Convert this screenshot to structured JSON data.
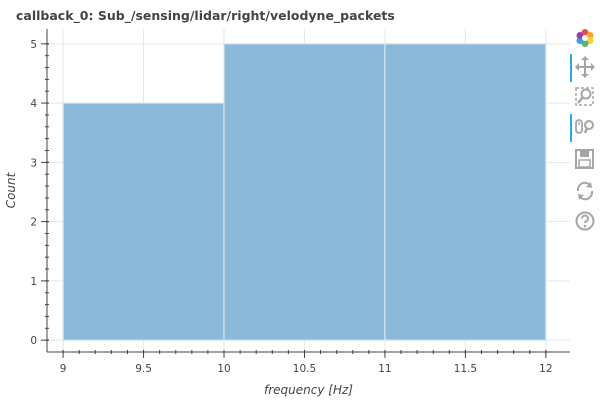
{
  "title": "callback_0: Sub_/sensing/lidar/right/velodyne_packets",
  "toolbar": {
    "tools": [
      {
        "name": "bokeh-logo-icon",
        "active": false
      },
      {
        "name": "pan-icon",
        "active": true
      },
      {
        "name": "box-zoom-icon",
        "active": false
      },
      {
        "name": "wheel-zoom-icon",
        "active": true
      },
      {
        "name": "save-icon",
        "active": false
      },
      {
        "name": "reset-icon",
        "active": false
      },
      {
        "name": "help-icon",
        "active": false
      }
    ]
  },
  "colors": {
    "bar_fill": "#8ab9da",
    "bar_stroke": "#d5e5f1",
    "grid": "#e6e6e6",
    "axis": "#444444",
    "toolbar_icon": "#a5a5a5",
    "toolbar_active": "#26aae1"
  },
  "chart_data": {
    "type": "bar",
    "title": "callback_0: Sub_/sensing/lidar/right/velodyne_packets",
    "xlabel": "frequency [Hz]",
    "ylabel": "Count",
    "bins": [
      {
        "left": 9,
        "right": 10,
        "count": 4
      },
      {
        "left": 10,
        "right": 11,
        "count": 5
      },
      {
        "left": 11,
        "right": 12,
        "count": 5
      }
    ],
    "xlim": [
      8.9,
      12.15
    ],
    "ylim": [
      -0.2,
      5.25
    ],
    "xticks": [
      9,
      9.5,
      10,
      10.5,
      11,
      11.5,
      12
    ],
    "xtick_labels": [
      "9",
      "9.5",
      "10",
      "10.5",
      "11",
      "11.5",
      "12"
    ],
    "yticks": [
      0,
      1,
      2,
      3,
      4,
      5
    ],
    "ytick_labels": [
      "0",
      "1",
      "2",
      "3",
      "4",
      "5"
    ],
    "grid": true,
    "legend": "none"
  }
}
